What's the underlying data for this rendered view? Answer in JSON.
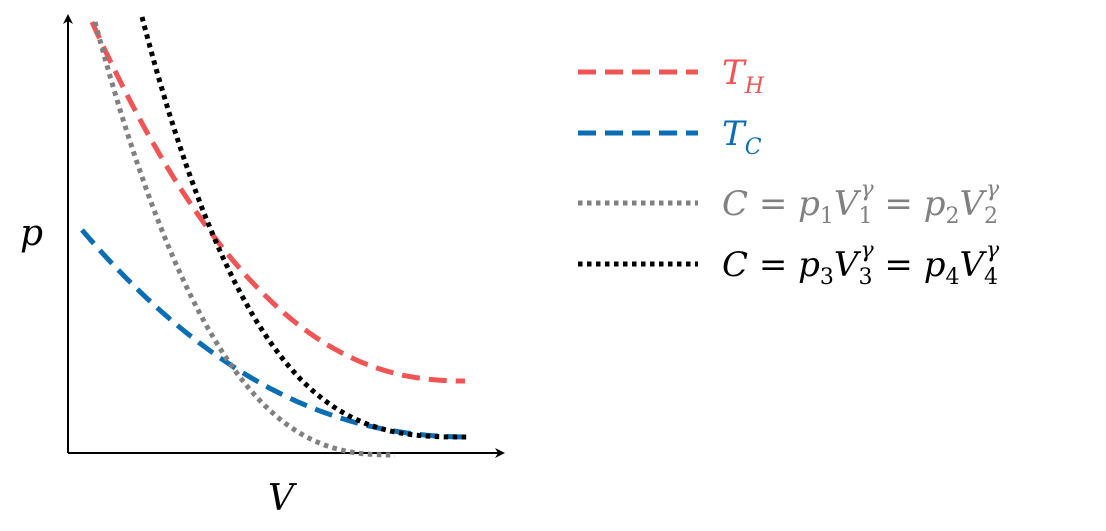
{
  "axes": {
    "x_label": "V",
    "y_label": "p"
  },
  "legend": [
    {
      "id": "th",
      "label": "T",
      "sub": "H",
      "color": "#f05454",
      "style": "dashed"
    },
    {
      "id": "tc",
      "label": "T",
      "sub": "C",
      "color": "#0a6eb4",
      "style": "dashed"
    },
    {
      "id": "ad12",
      "label_parts": [
        "C",
        " = ",
        "p",
        "1",
        "V",
        "1",
        "γ",
        " = ",
        "p",
        "2",
        "V",
        "2",
        "γ"
      ],
      "color": "#808080",
      "style": "dotted"
    },
    {
      "id": "ad34",
      "label_parts": [
        "C",
        " = ",
        "p",
        "3",
        "V",
        "3",
        "γ",
        " = ",
        "p",
        "4",
        "V",
        "4",
        "γ"
      ],
      "color": "#000000",
      "style": "dotted"
    }
  ],
  "curves": [
    {
      "id": "th",
      "family": "isotherm",
      "color": "#f05454",
      "style": "dashed"
    },
    {
      "id": "tc",
      "family": "isotherm",
      "color": "#0a6eb4",
      "style": "dashed"
    },
    {
      "id": "ad12",
      "family": "adiabat",
      "color": "#808080",
      "style": "dotted"
    },
    {
      "id": "ad34",
      "family": "adiabat",
      "color": "#000000",
      "style": "dotted"
    }
  ]
}
